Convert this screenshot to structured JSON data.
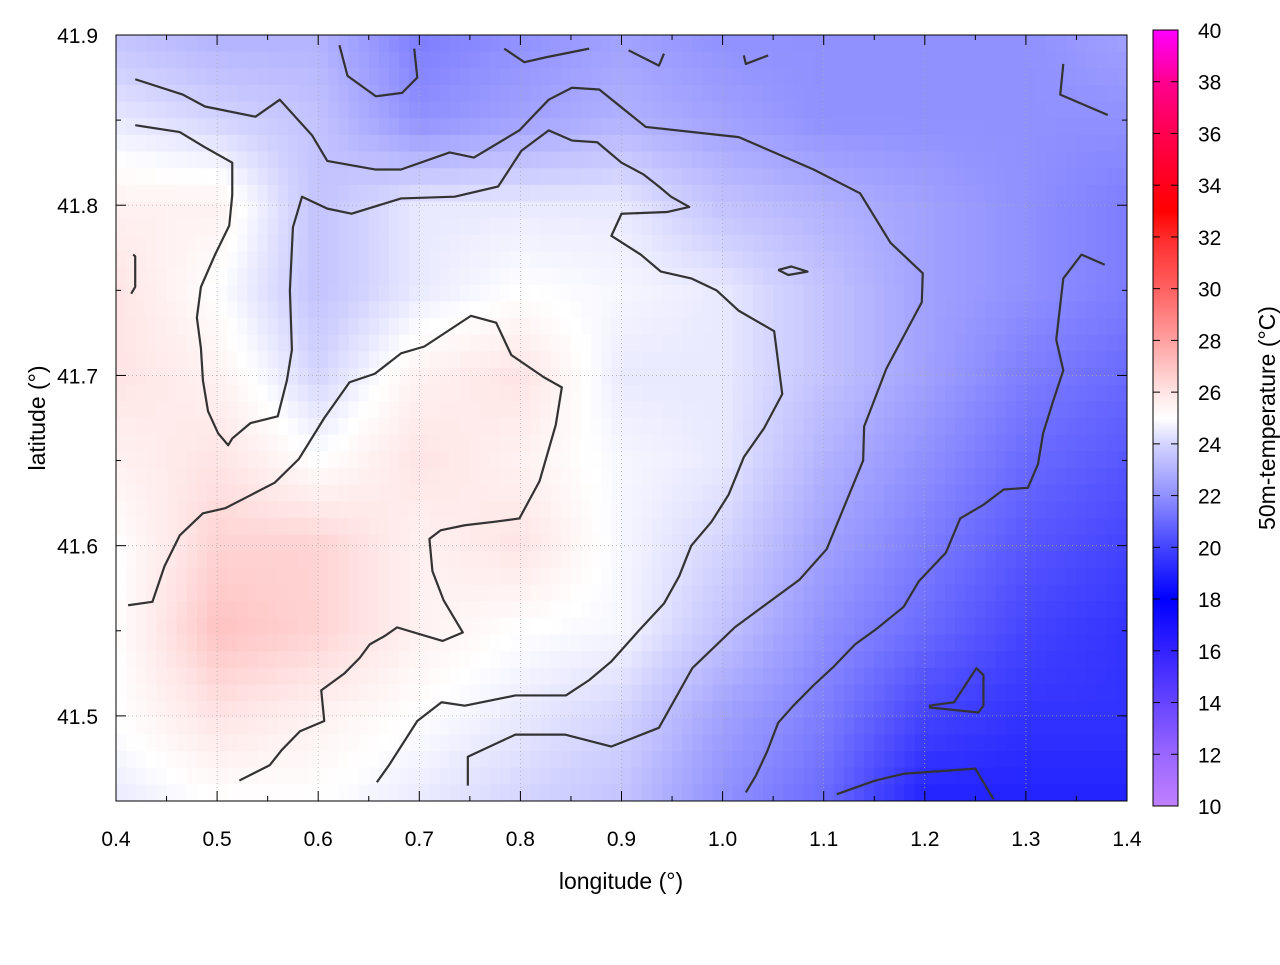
{
  "chart_data": {
    "type": "heatmap",
    "title": "",
    "xlabel": "longitude (°)",
    "ylabel": "latitude (°)",
    "colorbar_label": "50m-temperature (°C)",
    "xlim": [
      0.4,
      1.4
    ],
    "ylim": [
      41.45,
      41.9
    ],
    "xticks": [
      "0.4",
      "0.5",
      "0.6",
      "0.7",
      "0.8",
      "0.9",
      "1.0",
      "1.1",
      "1.2",
      "1.3",
      "1.4"
    ],
    "yticks": [
      "41.5",
      "41.6",
      "41.7",
      "41.8",
      "41.9"
    ],
    "clim": [
      10,
      40
    ],
    "cticks": [
      "10",
      "12",
      "14",
      "16",
      "18",
      "20",
      "22",
      "24",
      "26",
      "28",
      "30",
      "32",
      "34",
      "36",
      "38",
      "40"
    ],
    "grid": true,
    "palette": [
      {
        "v": 10,
        "color": "#c080ff"
      },
      {
        "v": 12,
        "color": "#9966ff"
      },
      {
        "v": 14,
        "color": "#6644ff"
      },
      {
        "v": 16,
        "color": "#3322ff"
      },
      {
        "v": 18,
        "color": "#0000ff"
      },
      {
        "v": 20,
        "color": "#4444ff"
      },
      {
        "v": 22,
        "color": "#9090ff"
      },
      {
        "v": 24,
        "color": "#d4d4ff"
      },
      {
        "v": 25,
        "color": "#ffffff"
      },
      {
        "v": 26,
        "color": "#ffe4e4"
      },
      {
        "v": 28,
        "color": "#ffa0a0"
      },
      {
        "v": 30,
        "color": "#ff6060"
      },
      {
        "v": 32,
        "color": "#ff2a2a"
      },
      {
        "v": 33,
        "color": "#ff0000"
      },
      {
        "v": 36,
        "color": "#ff0050"
      },
      {
        "v": 38,
        "color": "#ff0090"
      },
      {
        "v": 40,
        "color": "#ff00ff"
      }
    ],
    "grid_lon": [
      0.4,
      0.5,
      0.6,
      0.7,
      0.8,
      0.9,
      1.0,
      1.1,
      1.2,
      1.3,
      1.4
    ],
    "grid_lat": [
      41.9,
      41.85,
      41.8,
      41.75,
      41.7,
      41.65,
      41.6,
      41.55,
      41.5,
      41.45
    ],
    "values": [
      [
        23.5,
        23,
        23,
        21.5,
        22,
        22.5,
        22,
        22,
        22,
        22,
        22.5
      ],
      [
        24.5,
        24,
        23.5,
        22,
        22.5,
        23,
        22.5,
        22,
        22,
        22,
        22
      ],
      [
        25.5,
        25.5,
        23.5,
        24.5,
        24.5,
        24.5,
        23.5,
        23,
        22.5,
        22,
        21.5
      ],
      [
        26,
        25,
        23.5,
        24.5,
        25,
        24.8,
        24.5,
        23.5,
        22.5,
        22,
        21.5
      ],
      [
        26,
        25.5,
        24,
        25.5,
        26,
        24.5,
        24.5,
        23.5,
        22.5,
        21.5,
        21
      ],
      [
        25.5,
        26,
        25,
        26,
        25.5,
        24.8,
        24.5,
        23,
        22,
        21,
        20.5
      ],
      [
        25,
        26.5,
        26.5,
        25.5,
        26,
        24.8,
        24,
        22.5,
        21.5,
        20.5,
        20
      ],
      [
        25,
        27,
        26.5,
        25.5,
        25,
        24.8,
        23.5,
        22,
        21,
        20,
        19.5
      ],
      [
        25,
        26,
        25.5,
        25,
        24.5,
        24,
        22.5,
        21.5,
        20,
        19.5,
        19.5
      ],
      [
        24.5,
        25,
        25,
        24.5,
        24,
        23.5,
        22,
        21,
        19,
        19,
        19
      ]
    ],
    "contour_color": "#333333",
    "contours": [
      [
        [
          0.419,
          41.874
        ],
        [
          0.466,
          41.865
        ],
        [
          0.488,
          41.858
        ],
        [
          0.538,
          41.852
        ],
        [
          0.562,
          41.862
        ],
        [
          0.594,
          41.841
        ],
        [
          0.609,
          41.826
        ],
        [
          0.656,
          41.821
        ],
        [
          0.682,
          41.821
        ],
        [
          0.73,
          41.831
        ],
        [
          0.754,
          41.828
        ],
        [
          0.799,
          41.844
        ],
        [
          0.828,
          41.862
        ],
        [
          0.851,
          41.869
        ],
        [
          0.878,
          41.868
        ],
        [
          0.924,
          41.846
        ],
        [
          1.016,
          41.84
        ],
        [
          1.09,
          41.821
        ],
        [
          1.136,
          41.807
        ],
        [
          1.166,
          41.778
        ],
        [
          1.198,
          41.76
        ],
        [
          1.197,
          41.743
        ],
        [
          1.162,
          41.704
        ],
        [
          1.14,
          41.67
        ],
        [
          1.139,
          41.65
        ],
        [
          1.103,
          41.598
        ],
        [
          1.076,
          41.58
        ],
        [
          1.012,
          41.552
        ],
        [
          0.97,
          41.528
        ],
        [
          0.937,
          41.493
        ],
        [
          0.89,
          41.482
        ],
        [
          0.844,
          41.489
        ],
        [
          0.795,
          41.489
        ],
        [
          0.748,
          41.476
        ],
        [
          0.748,
          41.459
        ]
      ],
      [
        [
          0.412,
          41.565
        ],
        [
          0.436,
          41.567
        ],
        [
          0.448,
          41.588
        ],
        [
          0.463,
          41.606
        ],
        [
          0.486,
          41.619
        ],
        [
          0.508,
          41.622
        ],
        [
          0.531,
          41.629
        ],
        [
          0.557,
          41.637
        ],
        [
          0.581,
          41.651
        ],
        [
          0.606,
          41.675
        ],
        [
          0.631,
          41.696
        ],
        [
          0.656,
          41.701
        ],
        [
          0.682,
          41.713
        ],
        [
          0.705,
          41.717
        ],
        [
          0.751,
          41.735
        ],
        [
          0.776,
          41.731
        ],
        [
          0.791,
          41.712
        ],
        [
          0.823,
          41.699
        ],
        [
          0.841,
          41.693
        ],
        [
          0.835,
          41.671
        ],
        [
          0.819,
          41.638
        ],
        [
          0.799,
          41.616
        ],
        [
          0.774,
          41.614
        ],
        [
          0.745,
          41.612
        ],
        [
          0.721,
          41.609
        ],
        [
          0.71,
          41.604
        ],
        [
          0.713,
          41.585
        ],
        [
          0.724,
          41.568
        ],
        [
          0.743,
          41.549
        ],
        [
          0.723,
          41.544
        ],
        [
          0.678,
          41.552
        ],
        [
          0.666,
          41.547
        ],
        [
          0.651,
          41.542
        ],
        [
          0.641,
          41.534
        ],
        [
          0.626,
          41.525
        ],
        [
          0.603,
          41.515
        ],
        [
          0.606,
          41.497
        ],
        [
          0.582,
          41.491
        ],
        [
          0.564,
          41.48
        ],
        [
          0.552,
          41.471
        ],
        [
          0.522,
          41.462
        ]
      ],
      [
        [
          0.419,
          41.847
        ],
        [
          0.463,
          41.843
        ],
        [
          0.488,
          41.834
        ],
        [
          0.515,
          41.825
        ],
        [
          0.515,
          41.806
        ],
        [
          0.512,
          41.788
        ],
        [
          0.498,
          41.771
        ],
        [
          0.484,
          41.752
        ],
        [
          0.48,
          41.734
        ],
        [
          0.484,
          41.716
        ],
        [
          0.486,
          41.697
        ],
        [
          0.491,
          41.679
        ],
        [
          0.501,
          41.666
        ],
        [
          0.511,
          41.659
        ],
        [
          0.515,
          41.663
        ],
        [
          0.533,
          41.672
        ],
        [
          0.56,
          41.676
        ],
        [
          0.569,
          41.697
        ],
        [
          0.574,
          41.715
        ],
        [
          0.572,
          41.75
        ],
        [
          0.575,
          41.787
        ],
        [
          0.584,
          41.805
        ],
        [
          0.609,
          41.798
        ],
        [
          0.633,
          41.795
        ],
        [
          0.682,
          41.804
        ],
        [
          0.735,
          41.805
        ],
        [
          0.778,
          41.811
        ],
        [
          0.801,
          41.832
        ],
        [
          0.828,
          41.844
        ],
        [
          0.851,
          41.838
        ],
        [
          0.876,
          41.837
        ],
        [
          0.9,
          41.825
        ],
        [
          0.922,
          41.818
        ],
        [
          0.937,
          41.811
        ],
        [
          0.949,
          41.805
        ],
        [
          0.967,
          41.799
        ],
        [
          0.945,
          41.796
        ],
        [
          0.9,
          41.795
        ],
        [
          0.89,
          41.782
        ],
        [
          0.919,
          41.771
        ],
        [
          0.939,
          41.761
        ],
        [
          0.969,
          41.757
        ],
        [
          0.994,
          41.75
        ],
        [
          1.016,
          41.738
        ],
        [
          1.051,
          41.726
        ],
        [
          1.059,
          41.689
        ],
        [
          1.041,
          41.669
        ],
        [
          1.021,
          41.652
        ],
        [
          1.006,
          41.63
        ],
        [
          0.989,
          41.614
        ],
        [
          0.969,
          41.6
        ],
        [
          0.957,
          41.582
        ],
        [
          0.942,
          41.566
        ],
        [
          0.917,
          41.55
        ],
        [
          0.89,
          41.532
        ],
        [
          0.868,
          41.521
        ],
        [
          0.845,
          41.512
        ],
        [
          0.795,
          41.512
        ],
        [
          0.745,
          41.506
        ],
        [
          0.722,
          41.508
        ],
        [
          0.698,
          41.497
        ],
        [
          0.67,
          41.471
        ],
        [
          0.658,
          41.461
        ]
      ],
      [
        [
          1.378,
          41.765
        ],
        [
          1.355,
          41.771
        ],
        [
          1.337,
          41.757
        ],
        [
          1.33,
          41.721
        ],
        [
          1.337,
          41.703
        ],
        [
          1.327,
          41.685
        ],
        [
          1.317,
          41.666
        ],
        [
          1.312,
          41.648
        ],
        [
          1.302,
          41.634
        ],
        [
          1.278,
          41.633
        ],
        [
          1.258,
          41.624
        ],
        [
          1.235,
          41.616
        ],
        [
          1.221,
          41.596
        ],
        [
          1.194,
          41.579
        ],
        [
          1.179,
          41.564
        ],
        [
          1.152,
          41.551
        ],
        [
          1.131,
          41.542
        ],
        [
          1.11,
          41.529
        ],
        [
          1.09,
          41.518
        ],
        [
          1.07,
          41.506
        ],
        [
          1.055,
          41.496
        ],
        [
          1.044,
          41.479
        ],
        [
          1.033,
          41.465
        ],
        [
          1.023,
          41.455
        ]
      ],
      [
        [
          0.621,
          41.894
        ],
        [
          0.629,
          41.876
        ],
        [
          0.657,
          41.864
        ],
        [
          0.683,
          41.866
        ],
        [
          0.698,
          41.875
        ],
        [
          0.695,
          41.892
        ]
      ],
      [
        [
          0.784,
          41.892
        ],
        [
          0.804,
          41.884
        ],
        [
          0.826,
          41.887
        ],
        [
          0.868,
          41.892
        ]
      ],
      [
        [
          0.907,
          41.891
        ],
        [
          0.937,
          41.882
        ],
        [
          0.942,
          41.889
        ]
      ],
      [
        [
          1.021,
          41.888
        ],
        [
          1.023,
          41.883
        ],
        [
          1.045,
          41.888
        ]
      ],
      [
        [
          1.337,
          41.883
        ],
        [
          1.334,
          41.865
        ],
        [
          1.381,
          41.853
        ]
      ],
      [
        [
          0.417,
          41.771
        ],
        [
          0.419,
          41.77
        ],
        [
          0.419,
          41.752
        ],
        [
          0.415,
          41.748
        ]
      ],
      [
        [
          1.055,
          41.762
        ],
        [
          1.068,
          41.764
        ],
        [
          1.084,
          41.761
        ],
        [
          1.065,
          41.759
        ],
        [
          1.055,
          41.762
        ]
      ],
      [
        [
          1.204,
          41.506
        ],
        [
          1.229,
          41.508
        ],
        [
          1.251,
          41.528
        ],
        [
          1.258,
          41.524
        ],
        [
          1.258,
          41.506
        ],
        [
          1.253,
          41.502
        ],
        [
          1.204,
          41.505
        ]
      ],
      [
        [
          1.113,
          41.454
        ],
        [
          1.151,
          41.462
        ],
        [
          1.179,
          41.466
        ],
        [
          1.25,
          41.469
        ],
        [
          1.268,
          41.451
        ]
      ]
    ]
  }
}
